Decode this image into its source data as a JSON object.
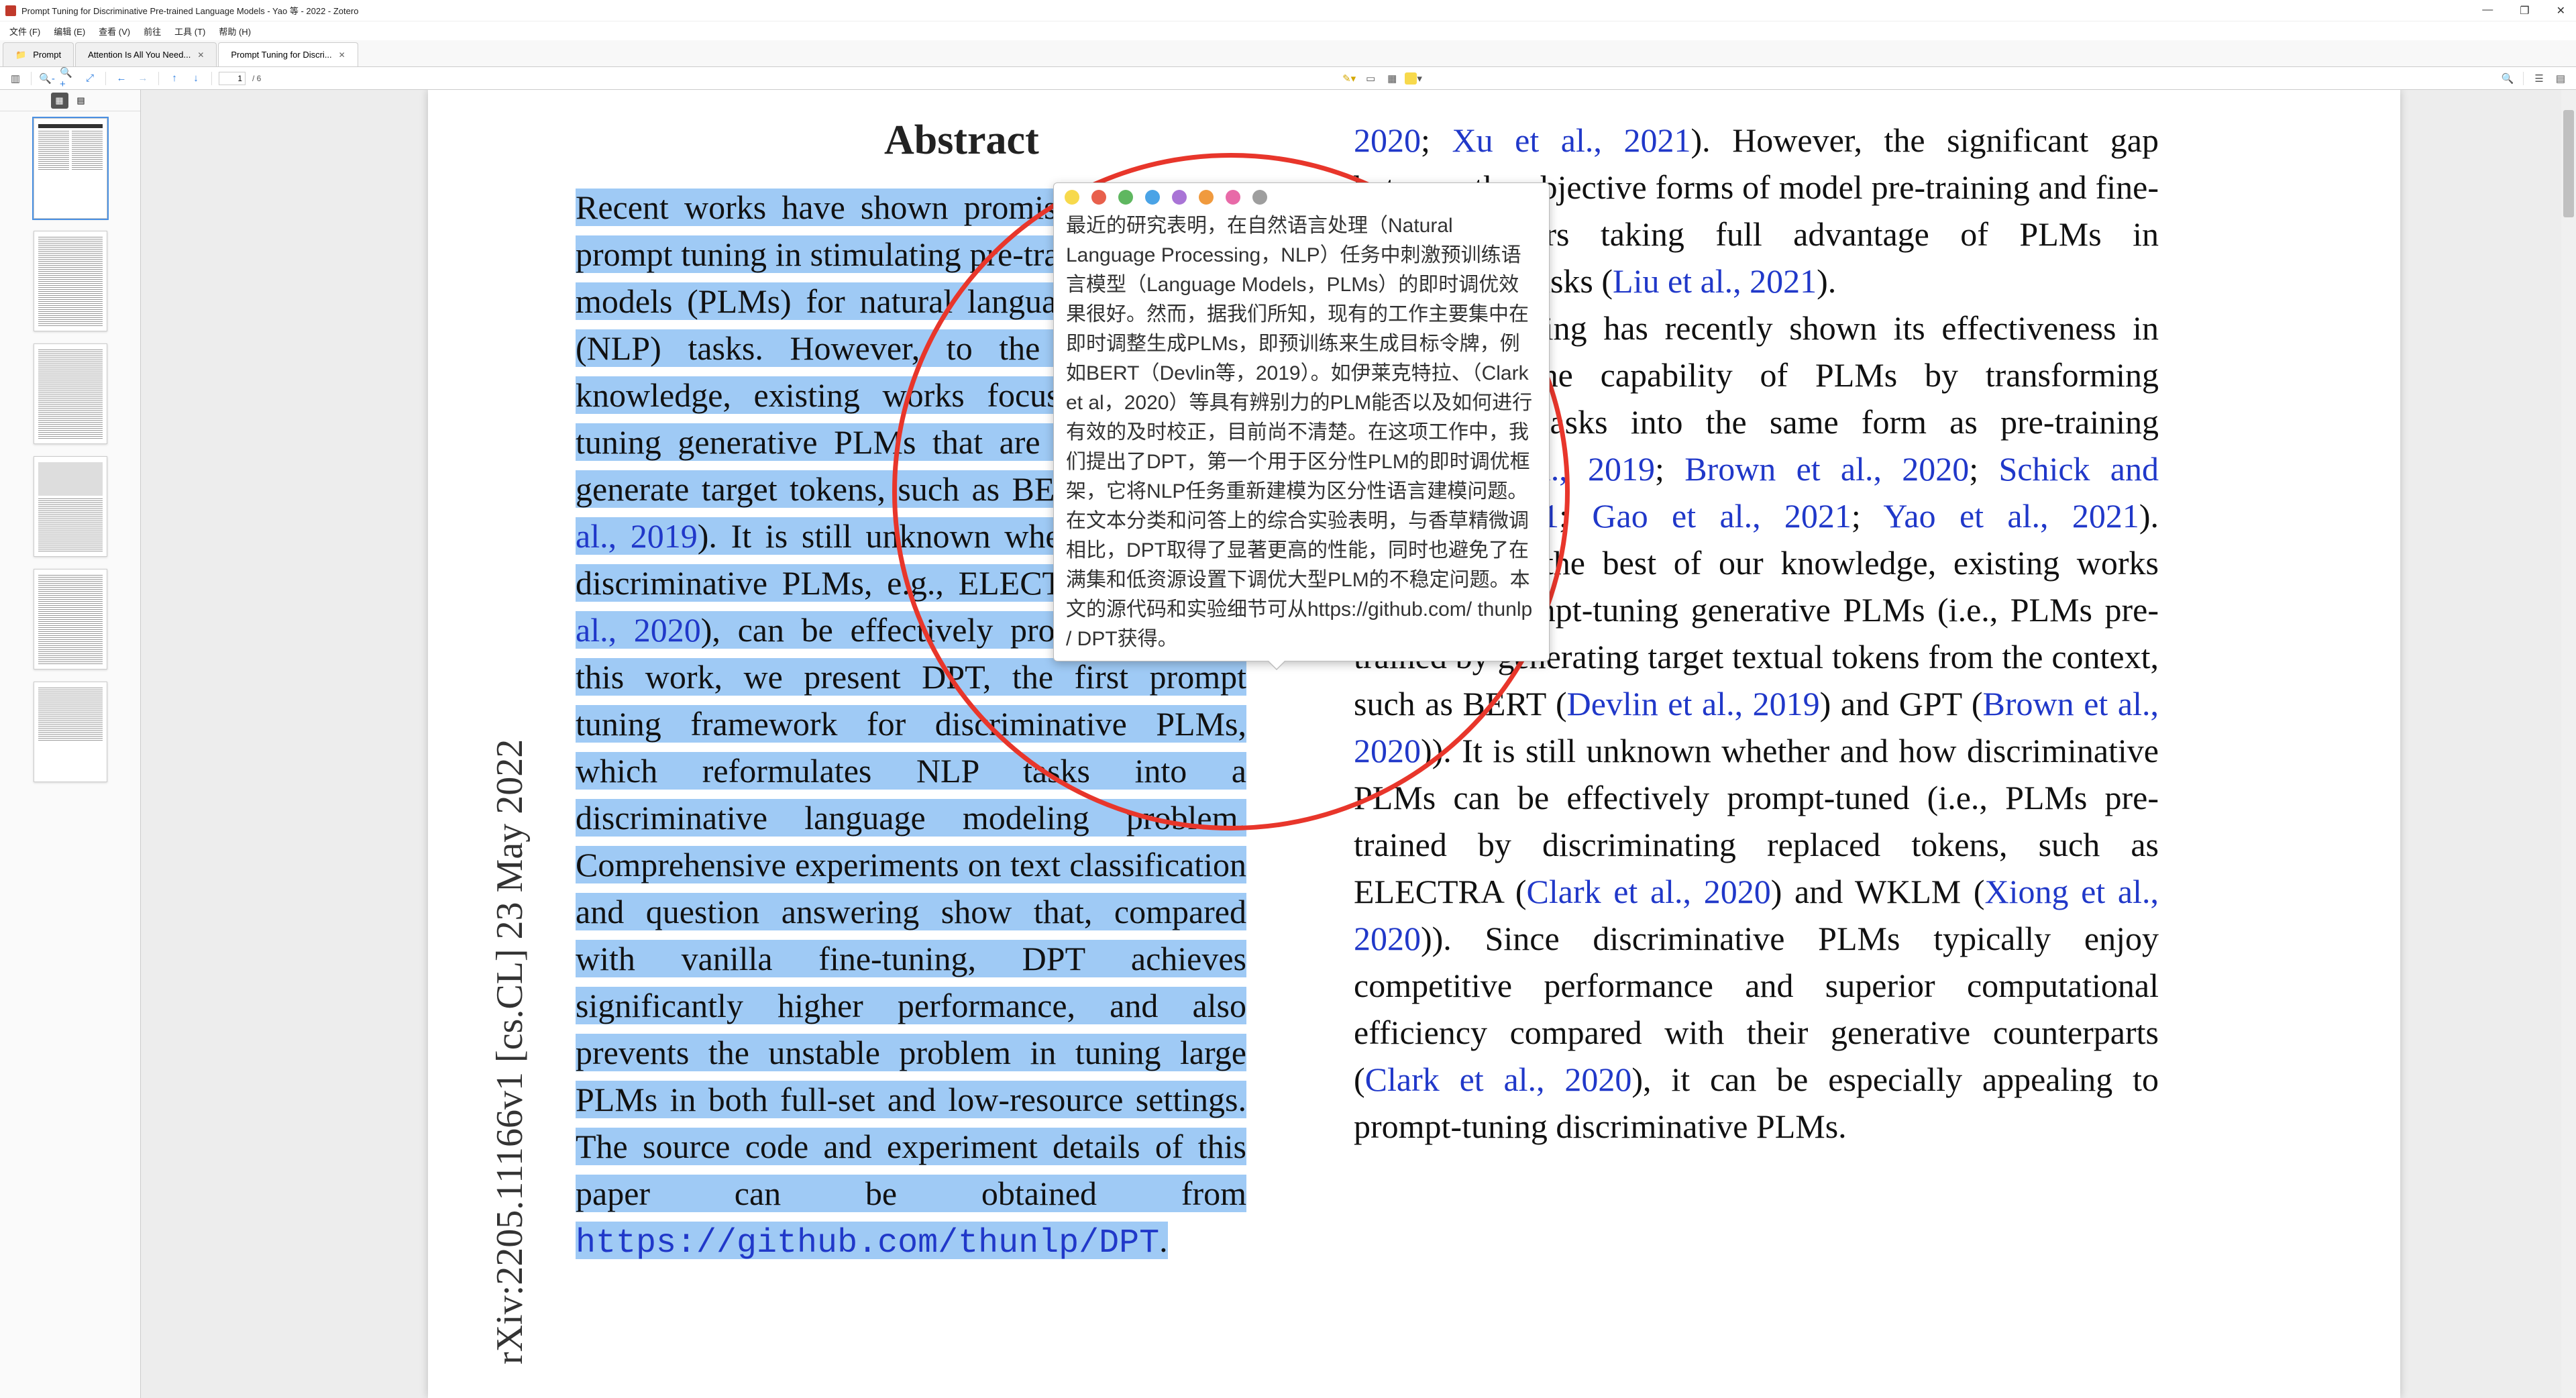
{
  "window": {
    "title": "Prompt Tuning for Discriminative Pre-trained Language Models - Yao 等 - 2022 - Zotero"
  },
  "menu": {
    "items": [
      "文件 (F)",
      "编辑 (E)",
      "查看 (V)",
      "前往",
      "工具 (T)",
      "帮助 (H)"
    ]
  },
  "tabs": {
    "items": [
      {
        "label": "Prompt",
        "icon": "folder"
      },
      {
        "label": "Attention Is All You Need...",
        "closable": true
      },
      {
        "label": "Prompt Tuning for Discri...",
        "closable": true,
        "active": true
      }
    ]
  },
  "toolbar": {
    "page_current": "1",
    "page_total": "/ 6"
  },
  "arxiv_stamp": "rXiv:2205.11166v1  [cs.CL]  23 May 2022",
  "abstract": {
    "heading": "Abstract",
    "body_html": "Recent works have shown promising results of prompt tuning in stimulating pre-trained language models (PLMs) for natural language processing (NLP) tasks. However, to the best of our knowledge, existing works focus on prompt-tuning generative PLMs that are pre-trained to generate target tokens, such as BERT (Devlin et al., 2019). It is still unknown whether and how discriminative PLMs, e.g., ELECTRA (Clark et al., 2020), can be effectively prompt-tuned. In this work, we present DPT, the first prompt tuning framework for discriminative PLMs, which reformulates NLP tasks into a discriminative language modeling problem. Comprehensive experiments on text classification and question answering show that, compared with vanilla fine-tuning, DPT achieves significantly higher performance, and also prevents the unstable problem in tuning large PLMs in both full-set and low-resource settings.  The source code and experiment details of this paper can be obtained from ",
    "link": "https://github.com/thunlp/DPT",
    "period": "."
  },
  "col2_html": "<span class='cite'>2020</span>; <span class='cite'>Xu et al., 2021</span>). However, the significant gap between the objective forms of model pre-training and fine-tuning hinders taking full advantage of PLMs in downstream tasks (<span class='cite'>Liu et al., 2021</span>).<br><span class='indent'></span>Prompt tuning has recently shown its effectiveness in stimulating the capability of PLMs by transforming downstream tasks into the same form as pre-training (<span class='cite'>Petroni et al., 2019</span>; <span class='cite'>Brown et al., 2020</span>; <span class='cite'>Schick and Schütze, 2021</span>; <span class='cite'>Gao et al., 2021</span>; <span class='cite'>Yao et al., 2021</span>). However, to the best of our knowledge, existing works focus on prompt-tuning generative PLMs (i.e., PLMs pre-trained by generating target textual tokens from the context, such as BERT (<span class='cite'>Devlin et al., 2019</span>) and GPT (<span class='cite'>Brown et al., 2020</span>)). It is still unknown whether and how discriminative PLMs can be effectively prompt-tuned (i.e., PLMs pre-trained by discriminating replaced tokens, such as ELECTRA (<span class='cite'>Clark et al., 2020</span>) and WKLM (<span class='cite'>Xiong et al., 2020</span>)). Since discriminative PLMs typically enjoy competitive performance and superior computational efficiency compared with their generative counterparts (<span class='cite'>Clark et al., 2020</span>), it can be especially appealing to prompt-tuning discriminative PLMs.",
  "note": {
    "colors": [
      "#f7d94c",
      "#e8604c",
      "#5fb760",
      "#4aa3e6",
      "#a974d6",
      "#f09a3e",
      "#e86aa8",
      "#9e9e9e"
    ],
    "text": "最近的研究表明，在自然语言处理（Natural Language Processing，NLP）任务中刺激预训练语言模型（Language Models，PLMs）的即时调优效果很好。然而，据我们所知，现有的工作主要集中在即时调整生成PLMs，即预训练来生成目标令牌，例如BERT（Devlin等，2019）。如伊莱克特拉、（Clark et al，2020）等具有辨别力的PLM能否以及如何进行有效的及时校正，目前尚不清楚。在这项工作中，我们提出了DPT，第一个用于区分性PLM的即时调优框架，它将NLP任务重新建模为区分性语言建模问题。在文本分类和问答上的综合实验表明，与香草精微调相比，DPT取得了显著更高的性能，同时也避免了在满集和低资源设置下调优大型PLM的不稳定问题。本文的源代码和实验细节可从https://github.com/ thunlp / DPT获得。"
  }
}
